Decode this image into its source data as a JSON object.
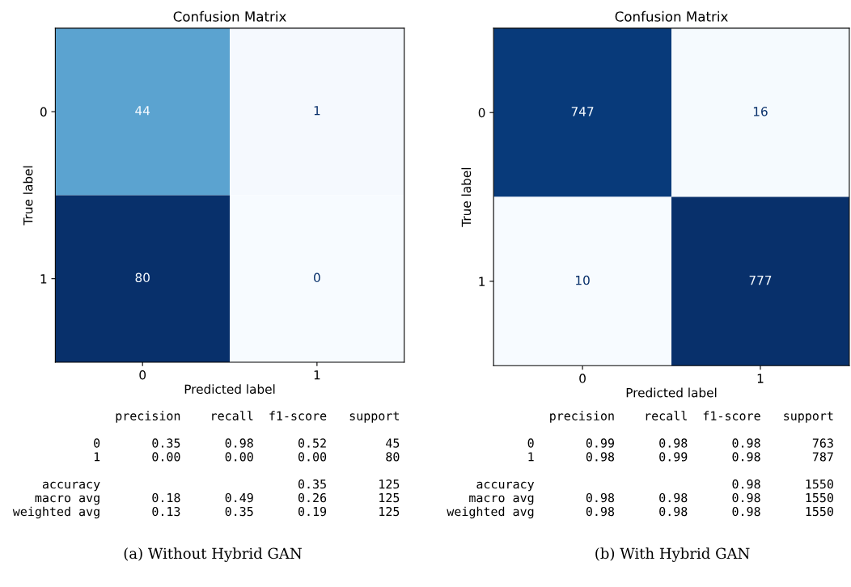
{
  "chart_data": [
    {
      "type": "heatmap",
      "title": "Confusion Matrix",
      "xlabel": "Predicted label",
      "ylabel": "True label",
      "categories": [
        "0",
        "1"
      ],
      "y_categories": [
        "0",
        "1"
      ],
      "cells": [
        [
          44,
          1
        ],
        [
          80,
          0
        ]
      ],
      "data_labels": true,
      "annotations": [
        "              precision    recall  f1-score   support\n\n           0       0.35      0.98      0.52        45\n           1       0.00      0.00      0.00        80\n\n    accuracy                           0.35       125\n   macro avg       0.18      0.49      0.26       125\nweighted avg       0.13      0.35      0.19       125",
        "(a) Without Hybrid GAN"
      ]
    },
    {
      "type": "heatmap",
      "title": "Confusion Matrix",
      "xlabel": "Predicted label",
      "ylabel": "True label",
      "categories": [
        "0",
        "1"
      ],
      "y_categories": [
        "0",
        "1"
      ],
      "cells": [
        [
          747,
          16
        ],
        [
          10,
          777
        ]
      ],
      "data_labels": true,
      "annotations": [
        "              precision    recall  f1-score   support\n\n           0       0.99      0.98      0.98       763\n           1       0.98      0.99      0.98       787\n\n    accuracy                           0.98      1550\n   macro avg       0.98      0.98      0.98      1550\nweighted avg       0.98      0.98      0.98      1550",
        "(b) With Hybrid GAN"
      ]
    }
  ]
}
